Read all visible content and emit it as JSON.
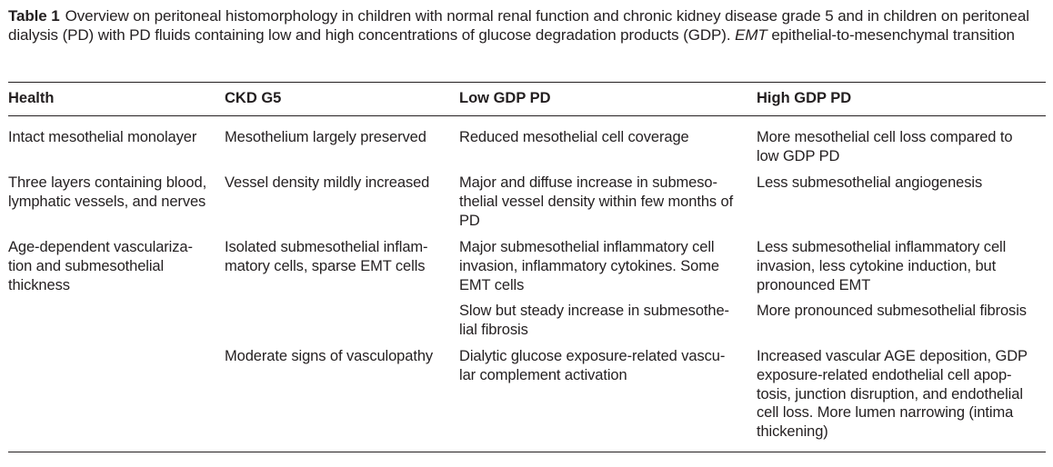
{
  "caption": {
    "label": "Table 1",
    "text": "Overview on peritoneal histomorphology in children with normal renal function and chronic kidney disease grade 5 and in children on peritoneal dialysis (PD) with PD fluids containing low and high concentrations of glucose degradation products (GDP).",
    "abbr": "EMT",
    "abbr_def": "epithelial-to-mesenchymal transition"
  },
  "headers": [
    "Health",
    "CKD G5",
    "Low GDP PD",
    "High GDP PD"
  ],
  "cells": {
    "health": [
      "Intact mesothelial monolayer",
      "Three layers containing blood, lymphatic vessels, and nerves",
      "Age-dependent vasculariza-tion and submesothelial thickness"
    ],
    "ckd": [
      "Mesothelium largely preserved",
      "Vessel density mildly increased",
      "Isolated submesothelial inflam-matory cells, sparse EMT cells",
      "Moderate signs of vasculopathy"
    ],
    "low": [
      "Reduced mesothelial cell coverage",
      "Major and diffuse increase in submeso-thelial vessel density within few months of PD",
      "Major submesothelial inflammatory cell invasion, inflammatory cytokines. Some EMT cells",
      "Slow but steady increase in submesothe-lial fibrosis",
      "Dialytic glucose exposure-related vascu-lar complement activation"
    ],
    "high": [
      "More mesothelial cell loss compared to low GDP PD",
      "Less submesothelial angiogenesis",
      "Less submesothelial inflammatory cell invasion, less cytokine induction, but pronounced EMT",
      "More pronounced submesothelial fibrosis",
      "Increased vascular AGE deposition, GDP exposure-related endothelial cell apop-tosis, junction disruption, and endothelial cell loss. More lumen narrowing (intima thickening)"
    ]
  }
}
